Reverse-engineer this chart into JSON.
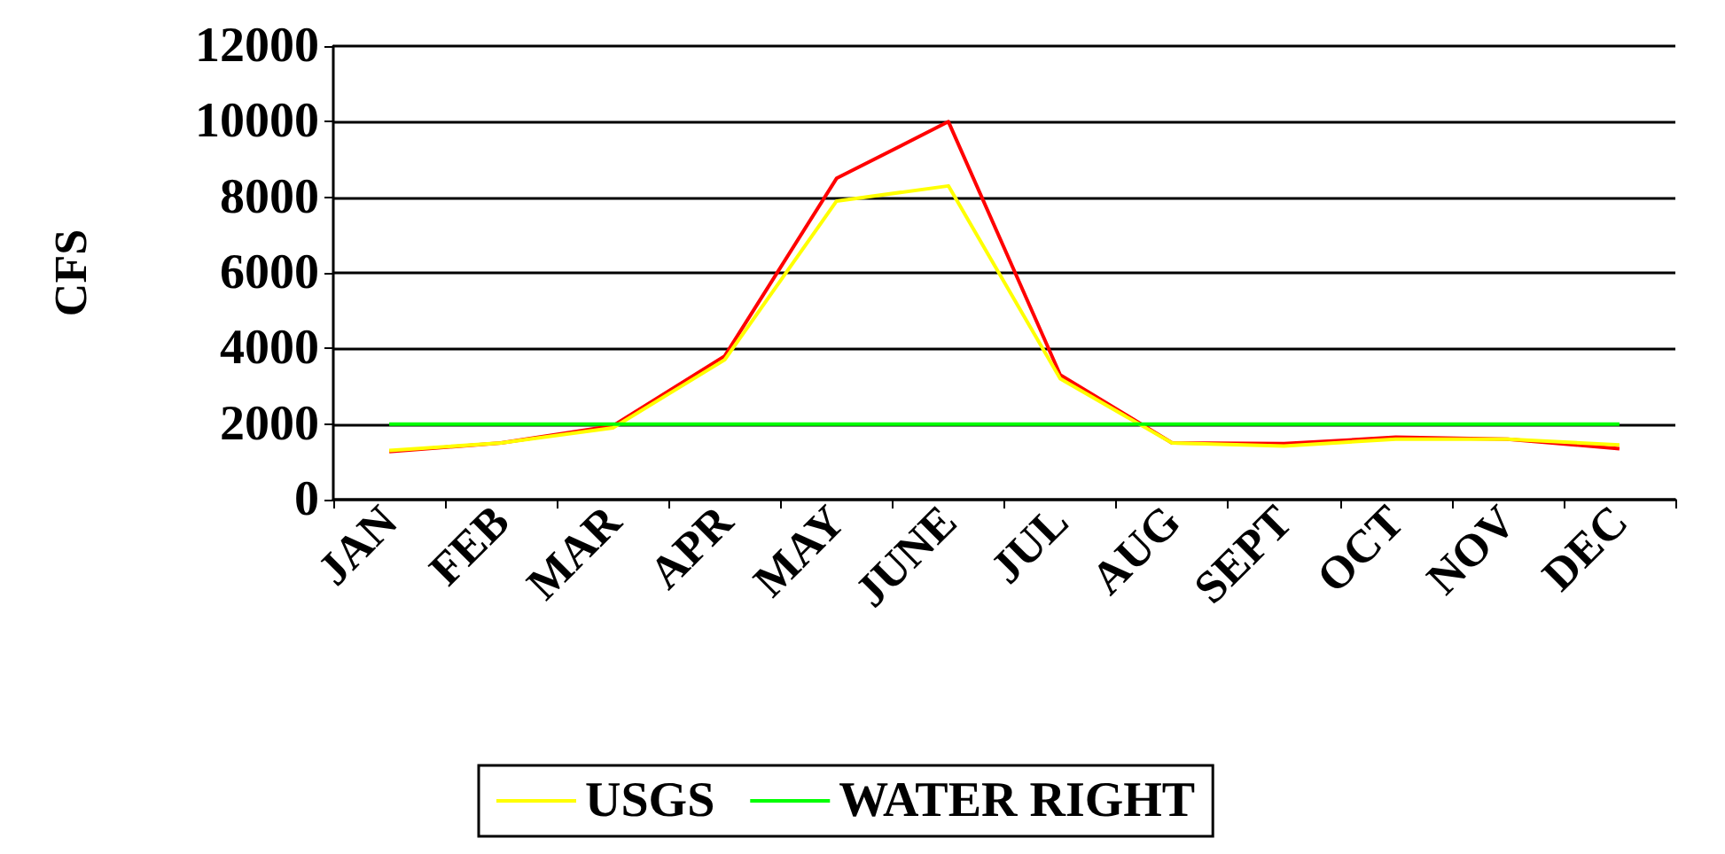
{
  "chart_data": {
    "type": "line",
    "ylabel": "CFS",
    "categories": [
      "JAN",
      "FEB",
      "MAR",
      "APR",
      "MAY",
      "JUNE",
      "JUL",
      "AUG",
      "SEPT",
      "OCT",
      "NOV",
      "DEC"
    ],
    "series": [
      {
        "color": "#ff0000",
        "values": [
          1270,
          1500,
          1950,
          3800,
          8500,
          10000,
          3300,
          1500,
          1480,
          1650,
          1600,
          1350
        ]
      },
      {
        "name": "USGS",
        "color": "#ffff00",
        "values": [
          1300,
          1500,
          1900,
          3700,
          7900,
          8300,
          3200,
          1500,
          1420,
          1600,
          1600,
          1450
        ]
      },
      {
        "name": "WATER RIGHT",
        "color": "#00ff00",
        "values": [
          2000,
          2000,
          2000,
          2000,
          2000,
          2000,
          2000,
          2000,
          2000,
          2000,
          2000,
          2000
        ]
      }
    ],
    "ylim": [
      0,
      12000
    ],
    "yticks": [
      0,
      2000,
      4000,
      6000,
      8000,
      10000,
      12000
    ],
    "grid": "y",
    "legend": "bottom",
    "marker": "none",
    "line_style": "solid"
  }
}
